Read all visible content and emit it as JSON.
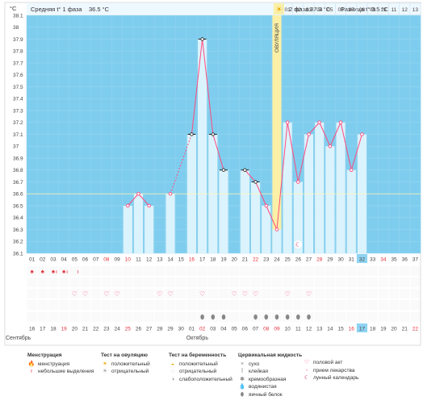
{
  "chart_data": {
    "type": "line",
    "ylabel": "°C",
    "ylim": [
      36.1,
      38.1
    ],
    "yticks": [
      "36.1",
      "36.2",
      "36.3",
      "36.4",
      "36.5",
      "36.6",
      "36.7",
      "36.8",
      "36.9",
      "37",
      "37.1",
      "37.2",
      "37.3",
      "37.4",
      "37.5",
      "37.6",
      "37.7",
      "37.8",
      "37.9",
      "38",
      "38.1"
    ],
    "cycle_days": [
      "01",
      "02",
      "03",
      "04",
      "05",
      "06",
      "07",
      "08",
      "09",
      "10",
      "11",
      "12",
      "13",
      "14",
      "15",
      "16",
      "17",
      "18",
      "19",
      "20",
      "21",
      "22",
      "23",
      "24",
      "25",
      "26",
      "27",
      "28",
      "29",
      "30",
      "31",
      "32",
      "33",
      "34",
      "35",
      "36",
      "37"
    ],
    "dates": [
      "16",
      "17",
      "18",
      "19",
      "20",
      "21",
      "22",
      "23",
      "24",
      "25",
      "26",
      "27",
      "28",
      "29",
      "30",
      "01",
      "02",
      "03",
      "04",
      "05",
      "06",
      "07",
      "08",
      "09",
      "10",
      "11",
      "12",
      "13",
      "14",
      "15",
      "16",
      "17",
      "18",
      "19",
      "20",
      "21",
      "22"
    ],
    "red_dates": [
      3,
      9,
      16,
      22,
      23,
      30,
      36
    ],
    "red_days": [
      7,
      9,
      15,
      21,
      27,
      33
    ],
    "highlight_day_index": 31,
    "month_labels": [
      {
        "text": "Сентябрь",
        "index": 0
      },
      {
        "text": "Октябрь",
        "index": 15
      }
    ],
    "ovulation_day_index": 23,
    "ovulation_label": "ОВУЛЯЦИЯ",
    "coverline": 36.6,
    "series": [
      {
        "values": [
          null,
          null,
          null,
          null,
          null,
          null,
          null,
          null,
          null,
          36.5,
          36.6,
          36.5,
          null,
          36.6,
          null,
          37.1,
          37.9,
          37.1,
          36.8,
          null,
          36.8,
          36.7,
          36.5,
          36.3,
          37.2,
          36.7,
          37.1,
          37.2,
          37.0,
          37.2,
          36.8,
          37.1,
          null,
          null,
          null,
          null,
          null
        ],
        "connected_with_dashes": [
          [
            13,
            15
          ]
        ]
      }
    ],
    "excluded_points": [
      15,
      16,
      17,
      18,
      20,
      21
    ],
    "phase1": {
      "label": "Средняя t° 1 фаза",
      "value": "36.5 °C",
      "header_days": [
        "01",
        "02",
        "03",
        "04",
        "05",
        "06",
        "07",
        "08",
        "09",
        "10",
        "11",
        "12",
        "13",
        "14",
        "15",
        "16",
        "17",
        "18",
        "19",
        "20",
        "21",
        "22",
        "23"
      ]
    },
    "phase2": {
      "label": "2 фаза",
      "value": "37.0 °C",
      "diff_label": "Разница t°",
      "diff_value": "0.5 °C",
      "header_days": [
        "01",
        "02",
        "03",
        "04",
        "05",
        "06",
        "07",
        "08",
        "09",
        "10",
        "11",
        "12",
        "13"
      ]
    },
    "menstruation_heavy": [
      0,
      1,
      2,
      3
    ],
    "menstruation_light": [
      2,
      3,
      4
    ],
    "intercourse": [
      4,
      5,
      7,
      8,
      12,
      13,
      16,
      19,
      20,
      21,
      24,
      26
    ],
    "egg_white": [
      16,
      17,
      18,
      21,
      22,
      23,
      24,
      25,
      26
    ],
    "moon_day": 25,
    "ovulation_sun": true
  },
  "legend": {
    "menstruation": {
      "title": "Менструация",
      "items": [
        "менструация",
        "небольшие выделения"
      ]
    },
    "ovulation_test": {
      "title": "Тест на овуляцию",
      "items": [
        "положительный",
        "отрицательный"
      ]
    },
    "pregnancy_test": {
      "title": "Тест на беременность",
      "items": [
        "положительный",
        "отрицательный",
        "слабоположительный"
      ]
    },
    "cervical_fluid": {
      "title": "Цервикальная жидкость",
      "items": [
        "сухо",
        "клейкая",
        "кремообразная",
        "водянистая",
        "яичный белок"
      ]
    },
    "other": {
      "items": [
        "половой акт",
        "прием лекарства",
        "лунный календарь"
      ]
    }
  },
  "colors": {
    "plot_bg": "#7fcdee",
    "bar": "#dbf3fd",
    "line": "#ff4a7d",
    "ovulation": "#fbf0a6",
    "red_text": "#e0303c",
    "highlight": "#8fd3f2"
  }
}
